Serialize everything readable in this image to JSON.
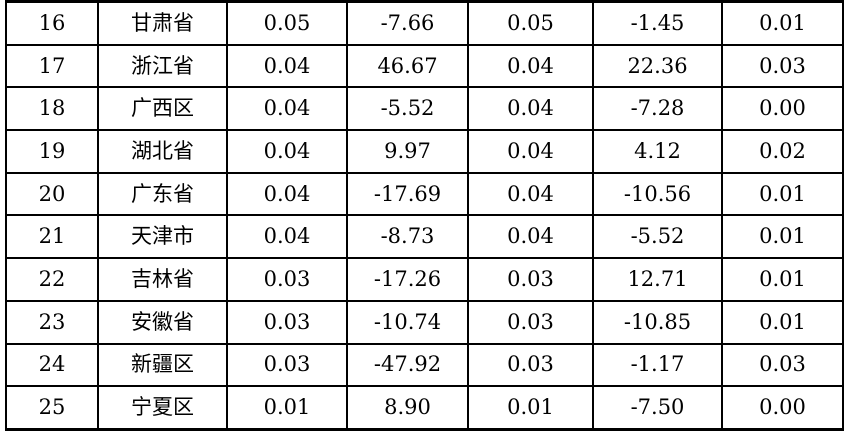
{
  "colors": {
    "background": "#ffffff",
    "text": "#000000",
    "grid_line": "#000000"
  },
  "table": {
    "rows": [
      [
        "16",
        "甘肃省",
        "0.05",
        "-7.66",
        "0.05",
        "-1.45",
        "0.01"
      ],
      [
        "17",
        "浙江省",
        "0.04",
        "46.67",
        "0.04",
        "22.36",
        "0.03"
      ],
      [
        "18",
        "广西区",
        "0.04",
        "-5.52",
        "0.04",
        "-7.28",
        "0.00"
      ],
      [
        "19",
        "湖北省",
        "0.04",
        "9.97",
        "0.04",
        "4.12",
        "0.02"
      ],
      [
        "20",
        "广东省",
        "0.04",
        "-17.69",
        "0.04",
        "-10.56",
        "0.01"
      ],
      [
        "21",
        "天津市",
        "0.04",
        "-8.73",
        "0.04",
        "-5.52",
        "0.01"
      ],
      [
        "22",
        "吉林省",
        "0.03",
        "-17.26",
        "0.03",
        "12.71",
        "0.01"
      ],
      [
        "23",
        "安徽省",
        "0.03",
        "-10.74",
        "0.03",
        "-10.85",
        "0.01"
      ],
      [
        "24",
        "新疆区",
        "0.03",
        "-47.92",
        "0.03",
        "-1.17",
        "0.03"
      ],
      [
        "25",
        "宁夏区",
        "0.01",
        "8.90",
        "0.01",
        "-7.50",
        "0.00"
      ]
    ]
  },
  "chart_data": {
    "type": "table",
    "title": "",
    "rows": [
      {
        "rank": 16,
        "region": "甘肃省",
        "values": [
          0.05,
          -7.66,
          0.05,
          -1.45,
          0.01
        ]
      },
      {
        "rank": 17,
        "region": "浙江省",
        "values": [
          0.04,
          46.67,
          0.04,
          22.36,
          0.03
        ]
      },
      {
        "rank": 18,
        "region": "广西区",
        "values": [
          0.04,
          -5.52,
          0.04,
          -7.28,
          0.0
        ]
      },
      {
        "rank": 19,
        "region": "湖北省",
        "values": [
          0.04,
          9.97,
          0.04,
          4.12,
          0.02
        ]
      },
      {
        "rank": 20,
        "region": "广东省",
        "values": [
          0.04,
          -17.69,
          0.04,
          -10.56,
          0.01
        ]
      },
      {
        "rank": 21,
        "region": "天津市",
        "values": [
          0.04,
          -8.73,
          0.04,
          -5.52,
          0.01
        ]
      },
      {
        "rank": 22,
        "region": "吉林省",
        "values": [
          0.03,
          -17.26,
          0.03,
          12.71,
          0.01
        ]
      },
      {
        "rank": 23,
        "region": "安徽省",
        "values": [
          0.03,
          -10.74,
          0.03,
          -10.85,
          0.01
        ]
      },
      {
        "rank": 24,
        "region": "新疆区",
        "values": [
          0.03,
          -47.92,
          0.03,
          -1.17,
          0.03
        ]
      },
      {
        "rank": 25,
        "region": "宁夏区",
        "values": [
          0.01,
          8.9,
          0.01,
          -7.5,
          0.0
        ]
      }
    ]
  }
}
